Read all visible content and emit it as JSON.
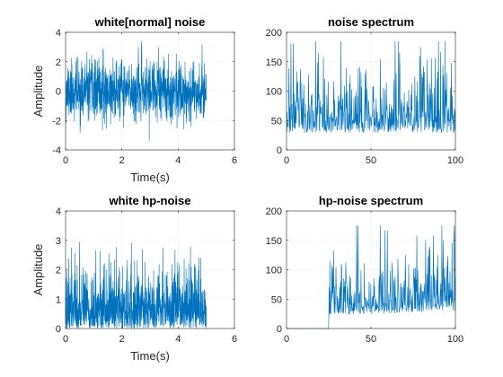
{
  "chart_data": [
    {
      "type": "line",
      "title": "white[normal] noise",
      "xlabel": "Time(s)",
      "ylabel": "Amplitude",
      "xlim": [
        0,
        6
      ],
      "ylim": [
        -4,
        4
      ],
      "xticks": [
        0,
        2,
        4,
        6
      ],
      "yticks": [
        -4,
        -2,
        0,
        2,
        4
      ],
      "grid": true,
      "color": "#0072BD",
      "signal": {
        "kind": "normal",
        "x_start": 0,
        "x_end": 5,
        "n_points": 1000,
        "mean": 0,
        "std": 1,
        "seed": 11
      },
      "series": []
    },
    {
      "type": "line",
      "title": "noise spectrum",
      "xlabel": "",
      "ylabel": "",
      "xlim": [
        0,
        100
      ],
      "ylim": [
        0,
        200
      ],
      "xticks": [
        0,
        50,
        100
      ],
      "yticks": [
        0,
        50,
        100,
        150,
        200
      ],
      "grid": true,
      "color": "#0072BD",
      "signal": {
        "kind": "spectrum",
        "x_start": 0,
        "x_end": 100,
        "n_points": 500,
        "mean": 65,
        "cutoff": 0,
        "seed": 23
      },
      "series": []
    },
    {
      "type": "line",
      "title": "white hp-noise",
      "xlabel": "Time(s)",
      "ylabel": "Amplitude",
      "xlim": [
        0,
        6
      ],
      "ylim": [
        0,
        4
      ],
      "xticks": [
        0,
        2,
        4,
        6
      ],
      "yticks": [
        0,
        1,
        2,
        3,
        4
      ],
      "grid": true,
      "color": "#0072BD",
      "signal": {
        "kind": "abs-normal",
        "x_start": 0,
        "x_end": 5,
        "n_points": 1000,
        "scale": 0.95,
        "seed": 37
      },
      "series": []
    },
    {
      "type": "line",
      "title": "hp-noise spectrum",
      "xlabel": "",
      "ylabel": "",
      "xlim": [
        0,
        100
      ],
      "ylim": [
        0,
        200
      ],
      "xticks": [
        0,
        50,
        100
      ],
      "yticks": [
        0,
        50,
        100,
        150,
        200
      ],
      "grid": true,
      "color": "#0072BD",
      "signal": {
        "kind": "spectrum-hp",
        "x_start": 0,
        "x_end": 100,
        "n_points": 500,
        "mean": 50,
        "ramp_to": 65,
        "cutoff": 25,
        "seed": 53
      },
      "series": []
    }
  ]
}
